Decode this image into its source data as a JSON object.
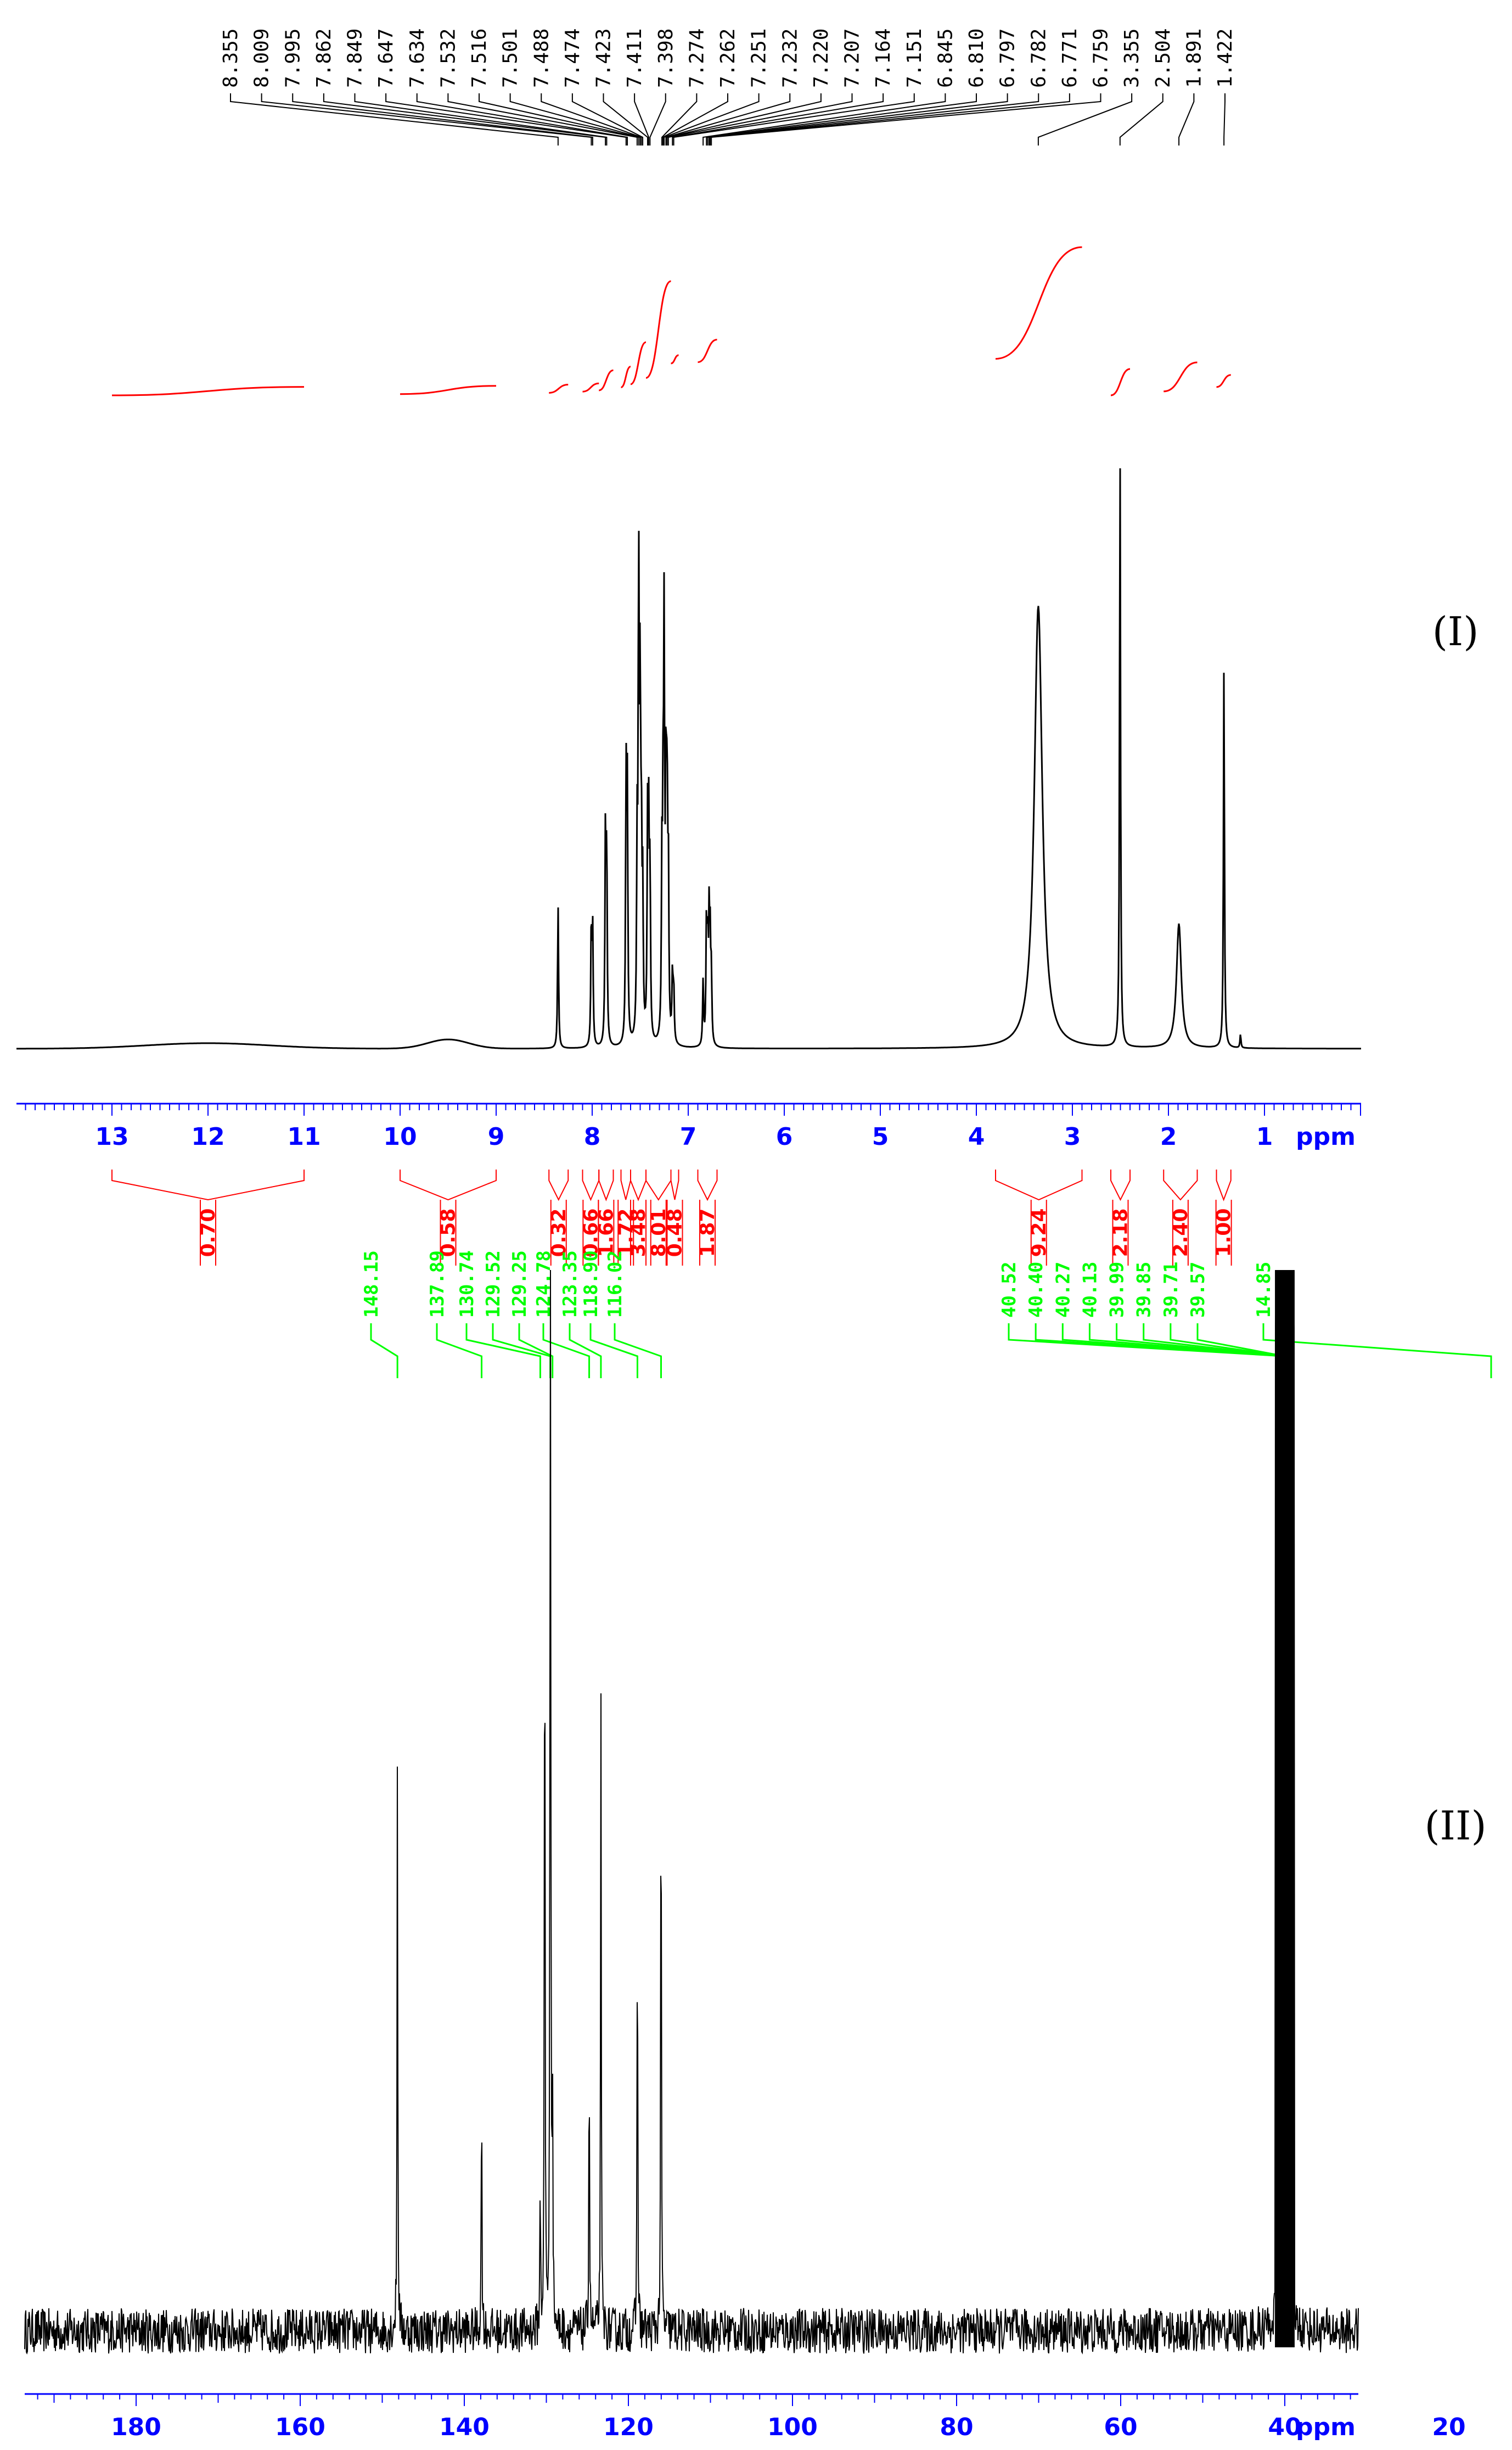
{
  "chart_data": [
    {
      "type": "line",
      "panel_label": "I",
      "x_unit": "ppm",
      "x_range": [
        14,
        0
      ],
      "x_ticks": [
        13,
        12,
        11,
        10,
        9,
        8,
        7,
        6,
        5,
        4,
        3,
        2,
        1
      ],
      "peak_labels": [
        "8.355",
        "8.009",
        "7.995",
        "7.862",
        "7.849",
        "7.647",
        "7.634",
        "7.532",
        "7.516",
        "7.501",
        "7.488",
        "7.474",
        "7.423",
        "7.411",
        "7.398",
        "7.274",
        "7.262",
        "7.251",
        "7.232",
        "7.220",
        "7.207",
        "7.164",
        "7.151",
        "6.845",
        "6.810",
        "6.797",
        "6.782",
        "6.771",
        "6.759",
        "3.355",
        "2.504",
        "1.891",
        "1.422"
      ],
      "peaks": [
        {
          "x": 8.355,
          "y": 0.31
        },
        {
          "x": 8.009,
          "y": 0.27
        },
        {
          "x": 7.995,
          "y": 0.25
        },
        {
          "x": 7.862,
          "y": 0.45
        },
        {
          "x": 7.849,
          "y": 0.42
        },
        {
          "x": 7.647,
          "y": 0.57
        },
        {
          "x": 7.634,
          "y": 0.53
        },
        {
          "x": 7.532,
          "y": 0.4
        },
        {
          "x": 7.516,
          "y": 1.0
        },
        {
          "x": 7.501,
          "y": 0.72
        },
        {
          "x": 7.488,
          "y": 0.4
        },
        {
          "x": 7.474,
          "y": 0.3
        },
        {
          "x": 7.423,
          "y": 0.45
        },
        {
          "x": 7.411,
          "y": 0.42
        },
        {
          "x": 7.398,
          "y": 0.35
        },
        {
          "x": 7.274,
          "y": 0.35
        },
        {
          "x": 7.262,
          "y": 0.4
        },
        {
          "x": 7.251,
          "y": 0.84
        },
        {
          "x": 7.232,
          "y": 0.55
        },
        {
          "x": 7.22,
          "y": 0.5
        },
        {
          "x": 7.207,
          "y": 0.35
        },
        {
          "x": 7.164,
          "y": 0.15
        },
        {
          "x": 7.151,
          "y": 0.12
        },
        {
          "x": 6.845,
          "y": 0.14
        },
        {
          "x": 6.81,
          "y": 0.26
        },
        {
          "x": 6.797,
          "y": 0.22
        },
        {
          "x": 6.782,
          "y": 0.26
        },
        {
          "x": 6.771,
          "y": 0.2
        },
        {
          "x": 6.759,
          "y": 0.14
        },
        {
          "x": 3.355,
          "y": 0.96
        },
        {
          "x": 2.504,
          "y": 1.3
        },
        {
          "x": 1.891,
          "y": 0.27
        },
        {
          "x": 1.422,
          "y": 0.83
        },
        {
          "x": 1.25,
          "y": 0.03
        }
      ],
      "integrals": [
        {
          "from": 13.0,
          "to": 11.0,
          "value": "0.70"
        },
        {
          "from": 10.0,
          "to": 9.0,
          "value": "0.58"
        },
        {
          "from": 8.45,
          "to": 8.25,
          "value": "0.32"
        },
        {
          "from": 8.1,
          "to": 7.93,
          "value": "0.66"
        },
        {
          "from": 7.93,
          "to": 7.78,
          "value": "1.66"
        },
        {
          "from": 7.7,
          "to": 7.6,
          "value": "1.72"
        },
        {
          "from": 7.6,
          "to": 7.44,
          "value": "3.48"
        },
        {
          "from": 7.44,
          "to": 7.18,
          "value": "8.01"
        },
        {
          "from": 7.18,
          "to": 7.1,
          "value": "0.48"
        },
        {
          "from": 6.9,
          "to": 6.7,
          "value": "1.87"
        },
        {
          "from": 3.8,
          "to": 2.9,
          "value": "9.24"
        },
        {
          "from": 2.6,
          "to": 2.4,
          "value": "2.18"
        },
        {
          "from": 2.05,
          "to": 1.7,
          "value": "2.40"
        },
        {
          "from": 1.5,
          "to": 1.35,
          "value": "1.00"
        }
      ]
    },
    {
      "type": "line",
      "panel_label": "II",
      "x_unit": "ppm",
      "x_range": [
        200,
        5
      ],
      "x_ticks": [
        180,
        160,
        140,
        120,
        100,
        80,
        60,
        40,
        20
      ],
      "peak_labels": [
        "148.15",
        "137.89",
        "130.74",
        "129.52",
        "129.25",
        "124.78",
        "123.35",
        "118.90",
        "116.02",
        "40.52",
        "40.40",
        "40.27",
        "40.13",
        "39.99",
        "39.85",
        "39.71",
        "39.57",
        "14.85"
      ],
      "peaks": [
        {
          "x": 148.15,
          "y": 0.58
        },
        {
          "x": 137.89,
          "y": 0.25
        },
        {
          "x": 130.74,
          "y": 0.15
        },
        {
          "x": 129.52,
          "y": 0.45
        },
        {
          "x": 129.25,
          "y": 0.25
        },
        {
          "x": 130.2,
          "y": 0.84
        },
        {
          "x": 129.5,
          "y": 1.0
        },
        {
          "x": 124.78,
          "y": 0.3
        },
        {
          "x": 123.35,
          "y": 0.62
        },
        {
          "x": 118.9,
          "y": 0.45
        },
        {
          "x": 116.02,
          "y": 0.62
        },
        {
          "x": 40.52,
          "y": 1.05
        },
        {
          "x": 40.4,
          "y": 1.05
        },
        {
          "x": 40.27,
          "y": 1.05
        },
        {
          "x": 40.13,
          "y": 1.05
        },
        {
          "x": 39.99,
          "y": 1.05
        },
        {
          "x": 39.85,
          "y": 1.05
        },
        {
          "x": 39.71,
          "y": 1.05
        },
        {
          "x": 39.57,
          "y": 1.05
        },
        {
          "x": 17.0,
          "y": 0.12
        },
        {
          "x": 14.85,
          "y": 0.16
        }
      ]
    }
  ],
  "colors": {
    "spectrum": "#000000",
    "integral": "#ff0000",
    "axis": "#0000ff",
    "carbon_label": "#00ff00"
  }
}
